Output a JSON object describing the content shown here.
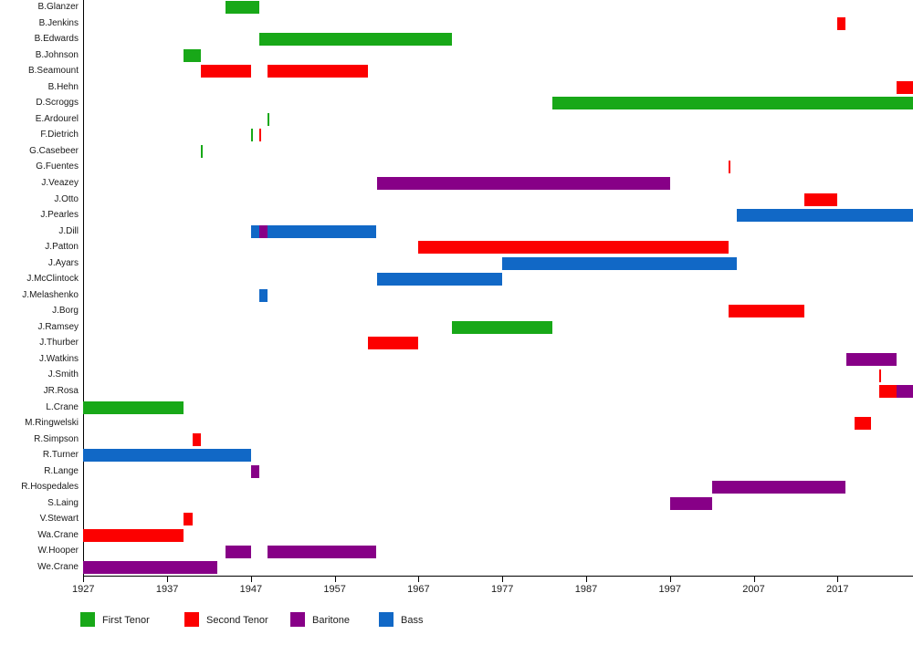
{
  "colors": {
    "first_tenor": "#18A818",
    "second_tenor": "#FC0000",
    "baritone": "#870087",
    "bass": "#1168C6",
    "axis": "#000000"
  },
  "chart_data": {
    "type": "gantt",
    "title": "",
    "x_axis": {
      "unit": "year",
      "ticks": [
        1927,
        1937,
        1947,
        1957,
        1967,
        1977,
        1987,
        1997,
        2007,
        2017
      ],
      "range": [
        1927,
        2026
      ]
    },
    "legend": [
      {
        "label": "First Tenor",
        "key": "first_tenor"
      },
      {
        "label": "Second Tenor",
        "key": "second_tenor"
      },
      {
        "label": "Baritone",
        "key": "baritone"
      },
      {
        "label": "Bass",
        "key": "bass"
      }
    ],
    "rows": [
      {
        "name": "B.Glanzer",
        "segments": [
          {
            "part": "first_tenor",
            "start": 1944,
            "end": 1948
          }
        ]
      },
      {
        "name": "B.Jenkins",
        "segments": [
          {
            "part": "second_tenor",
            "start": 2017,
            "end": 2018
          }
        ]
      },
      {
        "name": "B.Edwards",
        "segments": [
          {
            "part": "first_tenor",
            "start": 1948,
            "end": 1971
          }
        ]
      },
      {
        "name": "B.Johnson",
        "segments": [
          {
            "part": "first_tenor",
            "start": 1939,
            "end": 1941
          }
        ]
      },
      {
        "name": "B.Seamount",
        "segments": [
          {
            "part": "second_tenor",
            "start": 1941,
            "end": 1947
          },
          {
            "part": "second_tenor",
            "start": 1949,
            "end": 1961
          }
        ]
      },
      {
        "name": "B.Hehn",
        "segments": [
          {
            "part": "second_tenor",
            "start": 2024,
            "end": null,
            "ongoing": true
          }
        ]
      },
      {
        "name": "D.Scroggs",
        "segments": [
          {
            "part": "first_tenor",
            "start": 1983,
            "end": null,
            "ongoing": true
          }
        ]
      },
      {
        "name": "E.Ardourel",
        "segments": [
          {
            "part": "first_tenor",
            "start": 1949,
            "end": 1949
          }
        ]
      },
      {
        "name": "F.Dietrich",
        "segments": [
          {
            "part": "first_tenor",
            "start": 1947,
            "end": 1947
          },
          {
            "part": "second_tenor",
            "start": 1948,
            "end": 1948
          }
        ]
      },
      {
        "name": "G.Casebeer",
        "segments": [
          {
            "part": "first_tenor",
            "start": 1941,
            "end": 1941
          }
        ]
      },
      {
        "name": "G.Fuentes",
        "segments": [
          {
            "part": "second_tenor",
            "start": 2004,
            "end": 2004
          }
        ]
      },
      {
        "name": "J.Veazey",
        "segments": [
          {
            "part": "baritone",
            "start": 1962,
            "end": 1997
          }
        ]
      },
      {
        "name": "J.Otto",
        "segments": [
          {
            "part": "second_tenor",
            "start": 2013,
            "end": 2017
          }
        ]
      },
      {
        "name": "J.Pearles",
        "segments": [
          {
            "part": "bass",
            "start": 2005,
            "end": null,
            "ongoing": true
          }
        ]
      },
      {
        "name": "J.Dill",
        "segments": [
          {
            "part": "bass",
            "start": 1947,
            "end": 1948
          },
          {
            "part": "baritone",
            "start": 1948,
            "end": 1949
          },
          {
            "part": "bass",
            "start": 1949,
            "end": 1962
          }
        ]
      },
      {
        "name": "J.Patton",
        "segments": [
          {
            "part": "second_tenor",
            "start": 1967,
            "end": 2004
          }
        ]
      },
      {
        "name": "J.Ayars",
        "segments": [
          {
            "part": "bass",
            "start": 1977,
            "end": 2005
          }
        ]
      },
      {
        "name": "J.McClintock",
        "segments": [
          {
            "part": "bass",
            "start": 1962,
            "end": 1977
          }
        ]
      },
      {
        "name": "J.Melashenko",
        "segments": [
          {
            "part": "bass",
            "start": 1948,
            "end": 1949
          }
        ]
      },
      {
        "name": "J.Borg",
        "segments": [
          {
            "part": "second_tenor",
            "start": 2004,
            "end": 2013
          }
        ]
      },
      {
        "name": "J.Ramsey",
        "segments": [
          {
            "part": "first_tenor",
            "start": 1971,
            "end": 1983
          }
        ]
      },
      {
        "name": "J.Thurber",
        "segments": [
          {
            "part": "second_tenor",
            "start": 1961,
            "end": 1967
          }
        ]
      },
      {
        "name": "J.Watkins",
        "segments": [
          {
            "part": "baritone",
            "start": 2018,
            "end": 2024
          }
        ]
      },
      {
        "name": "J.Smith",
        "segments": [
          {
            "part": "second_tenor",
            "start": 2022,
            "end": 2022
          }
        ]
      },
      {
        "name": "JR.Rosa",
        "segments": [
          {
            "part": "second_tenor",
            "start": 2022,
            "end": 2024
          },
          {
            "part": "baritone",
            "start": 2024,
            "end": null,
            "ongoing": true
          }
        ]
      },
      {
        "name": "L.Crane",
        "segments": [
          {
            "part": "first_tenor",
            "start": 1927,
            "end": 1939
          }
        ]
      },
      {
        "name": "M.Ringwelski",
        "segments": [
          {
            "part": "second_tenor",
            "start": 2019,
            "end": 2021
          }
        ]
      },
      {
        "name": "R.Simpson",
        "segments": [
          {
            "part": "second_tenor",
            "start": 1940,
            "end": 1941
          }
        ]
      },
      {
        "name": "R.Turner",
        "segments": [
          {
            "part": "bass",
            "start": 1927,
            "end": 1947
          }
        ]
      },
      {
        "name": "R.Lange",
        "segments": [
          {
            "part": "baritone",
            "start": 1947,
            "end": 1948
          }
        ]
      },
      {
        "name": "R.Hospedales",
        "segments": [
          {
            "part": "baritone",
            "start": 2002,
            "end": 2018
          }
        ]
      },
      {
        "name": "S.Laing",
        "segments": [
          {
            "part": "baritone",
            "start": 1997,
            "end": 2002
          }
        ]
      },
      {
        "name": "V.Stewart",
        "segments": [
          {
            "part": "second_tenor",
            "start": 1939,
            "end": 1940
          }
        ]
      },
      {
        "name": "Wa.Crane",
        "segments": [
          {
            "part": "second_tenor",
            "start": 1927,
            "end": 1939
          }
        ]
      },
      {
        "name": "W.Hooper",
        "segments": [
          {
            "part": "baritone",
            "start": 1944,
            "end": 1947
          },
          {
            "part": "baritone",
            "start": 1949,
            "end": 1962
          }
        ]
      },
      {
        "name": "We.Crane",
        "segments": [
          {
            "part": "baritone",
            "start": 1927,
            "end": 1943
          }
        ]
      }
    ]
  },
  "layout_values": {
    "legend_lefts": [
      88,
      202,
      318,
      415
    ]
  }
}
